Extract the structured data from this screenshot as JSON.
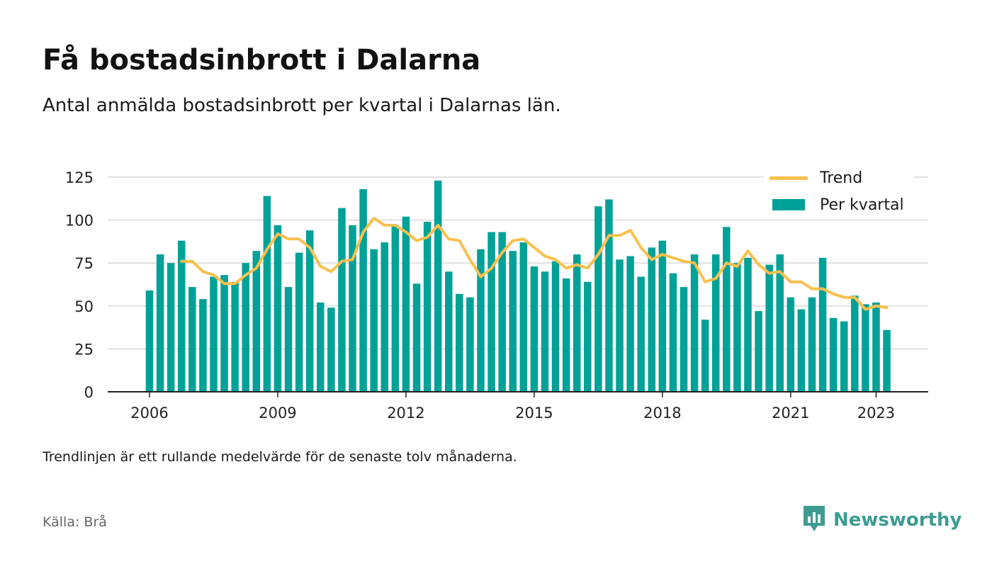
{
  "title": "Få bostadsinbrott i Dalarna",
  "subtitle": "Antal anmälda bostadsinbrott per kvartal i Dalarnas län.",
  "note": "Trendlinjen är ett rullande medelvärde för de senaste tolv månaderna.",
  "source": "Källa: Brå",
  "brand": {
    "name": "Newsworthy",
    "icon": "newsworthy-logo-icon"
  },
  "colors": {
    "bar": "#00a198",
    "trend": "#f9c04f",
    "grid": "#d9d9d9",
    "axis": "#222222",
    "brand": "#3d9c91"
  },
  "legend": {
    "trend_label": "Trend",
    "bar_label": "Per kvartal",
    "placement": "top-right"
  },
  "chart_data": {
    "type": "bar",
    "x_start": "2006 Q1",
    "x_ticks": [
      "2006",
      "2009",
      "2012",
      "2015",
      "2018",
      "2021",
      "2023"
    ],
    "y_ticks": [
      0,
      25,
      50,
      75,
      100,
      125
    ],
    "ylim": [
      0,
      125
    ],
    "grid": true,
    "xlabel": "",
    "ylabel": "",
    "series": [
      {
        "name": "Per kvartal",
        "type": "bar",
        "values": [
          59,
          80,
          75,
          88,
          61,
          54,
          67,
          68,
          64,
          75,
          82,
          114,
          97,
          61,
          81,
          94,
          52,
          49,
          107,
          97,
          118,
          83,
          87,
          97,
          102,
          63,
          99,
          123,
          70,
          57,
          55,
          83,
          93,
          93,
          82,
          87,
          73,
          70,
          76,
          66,
          80,
          64,
          108,
          112,
          77,
          79,
          67,
          84,
          88,
          69,
          61,
          80,
          42,
          80,
          96,
          75,
          78,
          47,
          74,
          80,
          55,
          48,
          55,
          78,
          43,
          41,
          56,
          51,
          52,
          36
        ]
      },
      {
        "name": "Trend",
        "type": "line",
        "start_index": 3,
        "values": [
          76,
          76,
          70,
          68,
          63,
          63,
          68,
          72,
          83,
          92,
          89,
          89,
          84,
          73,
          70,
          76,
          77,
          93,
          101,
          97,
          97,
          93,
          88,
          90,
          97,
          89,
          88,
          77,
          67,
          72,
          81,
          88,
          89,
          84,
          79,
          77,
          72,
          74,
          72,
          80,
          91,
          91,
          94,
          84,
          77,
          80,
          78,
          76,
          75,
          64,
          66,
          75,
          73,
          82,
          74,
          69,
          70,
          64,
          64,
          60,
          60,
          57,
          55,
          55,
          48,
          50,
          49
        ]
      }
    ]
  }
}
